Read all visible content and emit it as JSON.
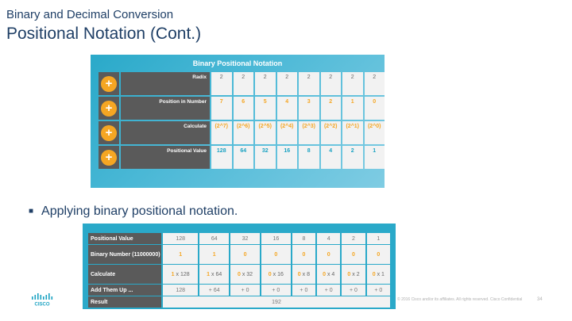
{
  "header": {
    "subtitle": "Binary and Decimal Conversion",
    "title": "Positional Notation (Cont.)"
  },
  "panel1": {
    "title": "Binary Positional Notation",
    "rows": [
      {
        "label": "Radix",
        "icon": "plus-icon",
        "values": [
          "2",
          "2",
          "2",
          "2",
          "2",
          "2",
          "2",
          "2"
        ]
      },
      {
        "label": "Position in Number",
        "icon": "plus-icon",
        "values": [
          "7",
          "6",
          "5",
          "4",
          "3",
          "2",
          "1",
          "0"
        ]
      },
      {
        "label": "Calculate",
        "icon": "plus-icon",
        "values": [
          "(2^7)",
          "(2^6)",
          "(2^5)",
          "(2^4)",
          "(2^3)",
          "(2^2)",
          "(2^1)",
          "(2^0)"
        ]
      },
      {
        "label": "Positional Value",
        "icon": "plus-icon",
        "values": [
          "128",
          "64",
          "32",
          "16",
          "8",
          "4",
          "2",
          "1"
        ]
      }
    ]
  },
  "bullet": "Applying binary positional notation.",
  "table2": {
    "rows": [
      {
        "label": "Positional Value",
        "values": [
          "128",
          "64",
          "32",
          "16",
          "8",
          "4",
          "2",
          "1"
        ]
      },
      {
        "label": "Binary Number (11000000)",
        "values": [
          "1",
          "1",
          "0",
          "0",
          "0",
          "0",
          "0",
          "0"
        ]
      },
      {
        "label": "Calculate",
        "values": [
          {
            "a": "1",
            "b": "128"
          },
          {
            "a": "1",
            "b": "64"
          },
          {
            "a": "0",
            "b": "32"
          },
          {
            "a": "0",
            "b": "16"
          },
          {
            "a": "0",
            "b": "8"
          },
          {
            "a": "0",
            "b": "4"
          },
          {
            "a": "0",
            "b": "2"
          },
          {
            "a": "0",
            "b": "1"
          }
        ]
      },
      {
        "label": "Add Them Up ...",
        "values": [
          "128",
          "+ 64",
          "+ 0",
          "+ 0",
          "+ 0",
          "+ 0",
          "+ 0",
          "+ 0"
        ]
      },
      {
        "label": "Result",
        "result": "192"
      }
    ]
  },
  "footer": {
    "text": "© 2016 Cisco and/or its affiliates. All rights reserved.    Cisco Confidential",
    "page": "34"
  },
  "colors": {
    "accent_orange": "#f5a623",
    "panel_teal": "#2aa9c9",
    "label_gray": "#5a5a5a"
  }
}
